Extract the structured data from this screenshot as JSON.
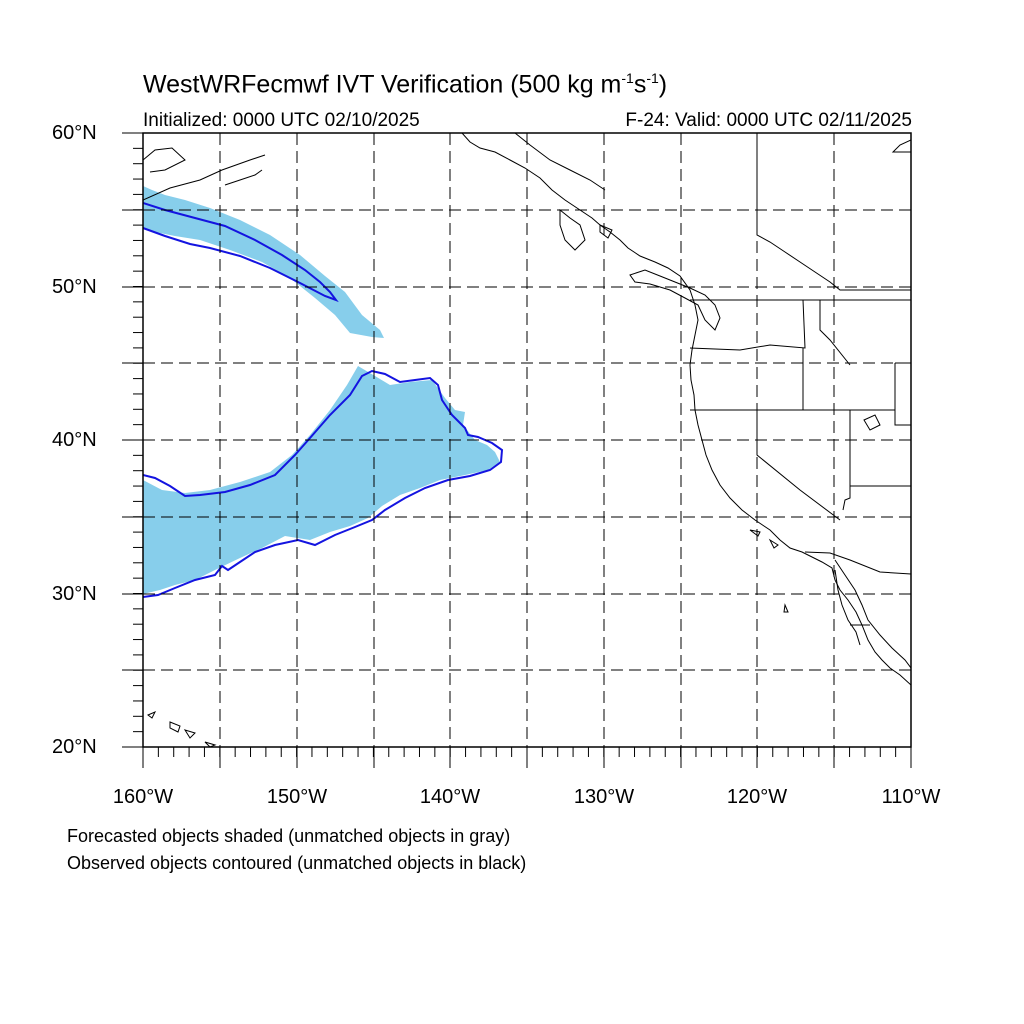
{
  "title": {
    "model": "WestWRFecmwf",
    "text": "WestWRFecmwf IVT Verification (500 kg m",
    "exp1": "-1",
    "mid": "s",
    "exp2": "-1",
    "end": ")"
  },
  "init_label": "Initialized: 0000 UTC 02/10/2025",
  "valid_label": "F-24: Valid: 0000 UTC 02/11/2025",
  "lat_labels": [
    "60°N",
    "50°N",
    "40°N",
    "30°N",
    "20°N"
  ],
  "lon_labels": [
    "160°W",
    "150°W",
    "140°W",
    "130°W",
    "120°W",
    "110°W"
  ],
  "notes": [
    "Forecasted objects shaded (unmatched objects in gray)",
    "Observed objects contoured (unmatched objects in black)"
  ],
  "colors": {
    "forecast_fill": "#87ceeb",
    "observed_contour": "#1414e0",
    "coastline": "#000000",
    "grid": "#000000"
  },
  "map": {
    "lon_range": [
      -160,
      -110
    ],
    "lat_range": [
      20,
      60
    ],
    "grid_lon_step": 5,
    "grid_lat_step": 5,
    "grid_style": "dashed"
  }
}
